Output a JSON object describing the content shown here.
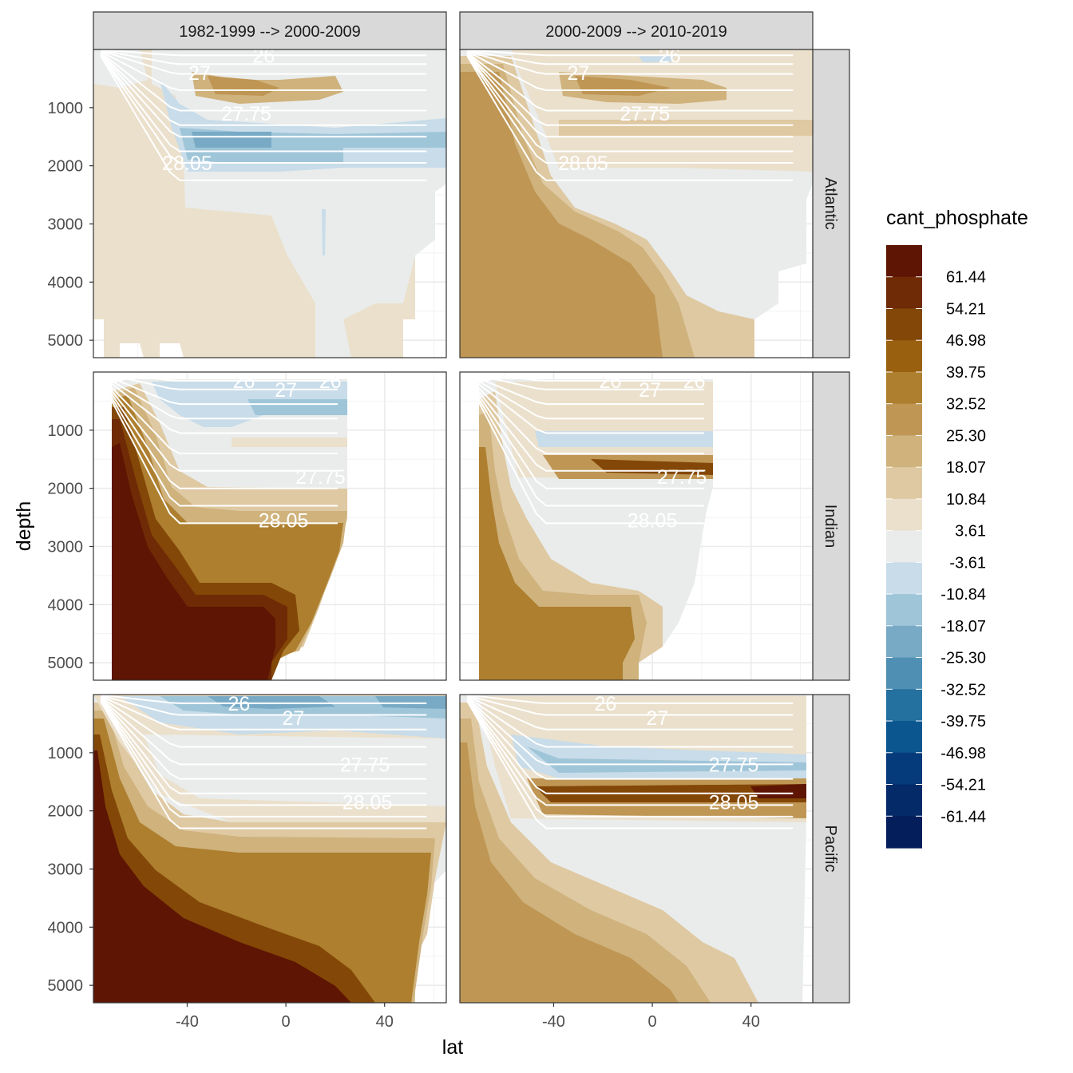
{
  "chart_data": {
    "type": "heatmap",
    "subtype": "filled contour sections (faceted)",
    "title": "",
    "xlabel": "lat",
    "ylabel": "depth",
    "x_ticks": [
      -40,
      0,
      40
    ],
    "y_ticks": [
      1000,
      2000,
      3000,
      4000,
      5000
    ],
    "xlim": [
      -78,
      65
    ],
    "ylim": [
      5300,
      0
    ],
    "column_facets": [
      "1982-1999 --> 2000-2009",
      "2000-2009 --> 2010-2019"
    ],
    "row_facets": [
      "Atlantic",
      "Indian",
      "Pacific"
    ],
    "legend": {
      "title": "cant_phosphate",
      "labels": [
        "61.44",
        "54.21",
        "46.98",
        "39.75",
        "32.52",
        "25.30",
        "18.07",
        "10.84",
        "3.61",
        "-3.61",
        "-10.84",
        "-18.07",
        "-25.30",
        "-32.52",
        "-39.75",
        "-46.98",
        "-54.21",
        "-61.44"
      ],
      "colors": [
        "#5e1503",
        "#6f2b05",
        "#834707",
        "#99600f",
        "#ad7f2f",
        "#bf9654",
        "#cfb27c",
        "#dfc9a2",
        "#ebe0cc",
        "#e9eceb",
        "#c8dce9",
        "#9fc5d8",
        "#78aac6",
        "#4f8fb4",
        "#24709f",
        "#0b568f",
        "#053b7a",
        "#042a68",
        "#041e5c"
      ]
    },
    "isopycnal_labels": [
      "26",
      "27",
      "27.75",
      "28.05"
    ],
    "panels": [
      {
        "row": "Atlantic",
        "col": "1982-1999 --> 2000-2009",
        "contour_labels": [
          {
            "text": "26",
            "lat": -9,
            "depth": 100
          },
          {
            "text": "27",
            "lat": -35,
            "depth": 400
          },
          {
            "text": "27.75",
            "lat": -16,
            "depth": 1100
          },
          {
            "text": "28.05",
            "lat": -40,
            "depth": 1950
          }
        ]
      },
      {
        "row": "Atlantic",
        "col": "2000-2009 --> 2010-2019",
        "contour_labels": [
          {
            "text": "26",
            "lat": 7,
            "depth": 100
          },
          {
            "text": "27",
            "lat": -30,
            "depth": 400
          },
          {
            "text": "27.75",
            "lat": -3,
            "depth": 1100
          },
          {
            "text": "28.05",
            "lat": -28,
            "depth": 1950
          }
        ]
      },
      {
        "row": "Indian",
        "col": "1982-1999 --> 2000-2009",
        "contour_labels": [
          {
            "text": "26",
            "lat": -17,
            "depth": 150
          },
          {
            "text": "27",
            "lat": 0,
            "depth": 300
          },
          {
            "text": "26",
            "lat": 18,
            "depth": 150
          },
          {
            "text": "27.75",
            "lat": 14,
            "depth": 1800
          },
          {
            "text": "28.05",
            "lat": -1,
            "depth": 2550
          }
        ]
      },
      {
        "row": "Indian",
        "col": "2000-2009 --> 2010-2019",
        "contour_labels": [
          {
            "text": "26",
            "lat": -17,
            "depth": 150
          },
          {
            "text": "27",
            "lat": -1,
            "depth": 300
          },
          {
            "text": "26",
            "lat": 17,
            "depth": 150
          },
          {
            "text": "27.75",
            "lat": 12,
            "depth": 1800
          },
          {
            "text": "28.05",
            "lat": 0,
            "depth": 2550
          }
        ]
      },
      {
        "row": "Pacific",
        "col": "1982-1999 --> 2000-2009",
        "contour_labels": [
          {
            "text": "26",
            "lat": -19,
            "depth": 150
          },
          {
            "text": "27",
            "lat": 3,
            "depth": 400
          },
          {
            "text": "27.75",
            "lat": 32,
            "depth": 1200
          },
          {
            "text": "28.05",
            "lat": 33,
            "depth": 1850
          }
        ]
      },
      {
        "row": "Pacific",
        "col": "2000-2009 --> 2010-2019",
        "contour_labels": [
          {
            "text": "26",
            "lat": -19,
            "depth": 150
          },
          {
            "text": "27",
            "lat": 2,
            "depth": 400
          },
          {
            "text": "27.75",
            "lat": 33,
            "depth": 1200
          },
          {
            "text": "28.05",
            "lat": 33,
            "depth": 1850
          }
        ]
      }
    ]
  }
}
